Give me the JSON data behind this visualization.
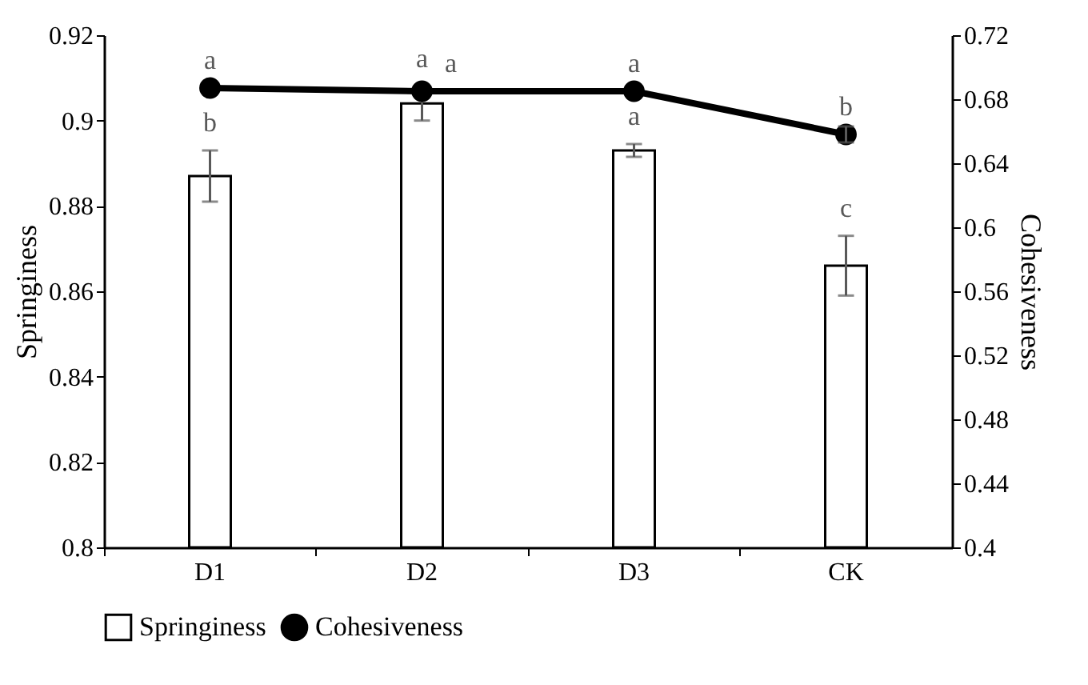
{
  "chart_data": {
    "type": "bar",
    "categories": [
      "D1",
      "D2",
      "D3",
      "CK"
    ],
    "ylabel": "Springiness",
    "y2label": "Cohesiveness",
    "ylim": [
      0.8,
      0.92
    ],
    "yticks": [
      0.8,
      0.82,
      0.84,
      0.86,
      0.88,
      0.9,
      0.92
    ],
    "y2lim": [
      0.4,
      0.72
    ],
    "y2ticks": [
      0.4,
      0.44,
      0.48,
      0.52,
      0.56,
      0.6,
      0.64,
      0.68,
      0.72
    ],
    "series": [
      {
        "name": "Springiness",
        "color": "#ffffff",
        "values": [
          0.887,
          0.904,
          0.893,
          0.866
        ],
        "errors": [
          0.006,
          0.004,
          0.0015,
          0.007
        ]
      },
      {
        "name": "Cohesiveness",
        "type": "line",
        "axis": "y2",
        "color": "#000000",
        "marker": "circle",
        "values": [
          0.687,
          0.685,
          0.685,
          0.658
        ],
        "errors": [
          null,
          null,
          null,
          0.005
        ]
      }
    ],
    "annotations": [
      {
        "text": "a",
        "x": "D1",
        "y": 0.9076
      },
      {
        "text": "a",
        "x": "D2",
        "y": 0.904
      },
      {
        "text": "a",
        "x": "D2",
        "y": 0.9069
      },
      {
        "text": "a",
        "x": "D3",
        "y": 0.9069
      },
      {
        "text": "b",
        "x": "CK",
        "y": 0.8968
      },
      {
        "text": "b",
        "x": "D1",
        "y": 0.887
      },
      {
        "text": "a",
        "x": "D3",
        "y": 0.893
      },
      {
        "text": "c",
        "x": "CK",
        "y": 0.866
      }
    ],
    "legend": "bottom",
    "grid": false
  }
}
